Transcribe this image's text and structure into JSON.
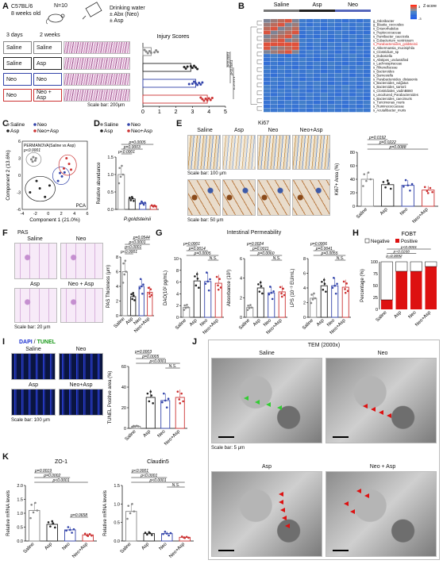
{
  "panel_labels": {
    "a": "A",
    "b": "B",
    "c": "C",
    "d": "D",
    "e": "E",
    "f": "F",
    "g": "G",
    "h": "H",
    "i": "I",
    "j": "J",
    "k": "K"
  },
  "panelA": {
    "strain": "C57BL/6",
    "age": "8 weeks old",
    "n": "N=10",
    "drink1": "Drinking water",
    "drink2": "± Abx (Neo)",
    "drink3": "± Asp",
    "period1": "3 days",
    "period2": "2 weeks",
    "left_groups": [
      "Saline",
      "Saline",
      "Neo",
      "Neo"
    ],
    "right_groups": [
      "Saline",
      "Asp",
      "Neo",
      "Neo + Asp"
    ],
    "group_colors": [
      "#888888",
      "#222222",
      "#3344aa",
      "#cc3333"
    ],
    "scalebar": "Scale bar: 200μm",
    "chart_title": "Injury Scores",
    "pvals": [
      "p<0.0001",
      "p<0.0001",
      "p=0.013"
    ]
  },
  "panelB": {
    "groups": [
      "Saline",
      "Asp",
      "Neo"
    ],
    "legend_title": "Z-score",
    "legend_ticks": [
      "3",
      "2",
      "1",
      "0",
      "-1",
      "-2",
      "-3"
    ],
    "taxa": [
      "g_Odoribacter",
      "g_Blautia_coccoides",
      "s_Enterorhabdus",
      "s_Peptococcaceae",
      "s_Parvibacter_caecicola",
      "s_Eubacterium_ventriosum",
      "s_Parabacteroides_goldsteinii",
      "s_Akkermansia_muciniphila",
      "s_Clostridium_sp",
      "s_Dubosiella",
      "s_Alistipes_unclassified",
      "s_Lachnospiraceae",
      "s_Rikenellaceae",
      "s_Bacteroides",
      "s_Barnesiella",
      "s_Parabacteroides_distasonis",
      "s_Bacteroides_vulgatus",
      "s_Bacteroides_sartorii",
      "s_Clostridiales_vadinBB60",
      "s_uncultured_Parabacteroides",
      "s_Bacteroides_caecimuris",
      "s_Turicimonas_muris",
      "s_Ruminococcaceae",
      "s_Acutalibacter_muris"
    ],
    "highlight_index": 6
  },
  "panelC": {
    "legend": [
      "Saline",
      "Neo",
      "Asp",
      "Neo+Asp"
    ],
    "note1": "PERMANOVA(Saline vs Asp)",
    "note2": "p<0.0001",
    "method": "PCA"
  },
  "panelD": {
    "legend": [
      "Saline",
      "Neo",
      "Asp",
      "Neo+Asp"
    ],
    "pvals": [
      "p<0.0001",
      "p=0.0003",
      "p=0.0005"
    ],
    "xlabel": "P.goldsteinii"
  },
  "panelE": {
    "title": "Ki67",
    "groups": [
      "Saline",
      "Asp",
      "Neo",
      "Neo+Asp"
    ],
    "scalebar1": "Scale bar: 100 μm",
    "scalebar2": "Scale bar: 50 μm",
    "pvals": [
      "p=0.0088",
      "p=0.0222",
      "p=0.0192"
    ]
  },
  "panelF": {
    "title": "PAS",
    "groups": [
      "Saline",
      "Neo",
      "Asp",
      "Neo + Asp"
    ],
    "scalebar": "Scale bar: 20 μm",
    "pvals": [
      "p<0.0001",
      "p<0.0001",
      "p<0.0001",
      "p=0.0544"
    ]
  },
  "panelG": {
    "title": "Intestinal Permeability",
    "pvals_dao": [
      "p=0.0005",
      "p=0.0014",
      "p=0.0001"
    ],
    "pvals_abs": [
      "p=0.0060",
      "p=0.0011",
      "p=0.0024"
    ],
    "pvals_lps": [
      "p=0.0055",
      "p=0.0041",
      "p=0.0006"
    ],
    "ns": "N.S."
  },
  "panelH": {
    "title": "FOBT",
    "legend": [
      "Negative",
      "Positive"
    ],
    "pvals": [
      "p<0.0001",
      "p=0.0268",
      "p=0.0092"
    ]
  },
  "panelI": {
    "title_dapi": "DAPI",
    "title_sep": " / ",
    "title_tunel": "TUNEL",
    "groups": [
      "Saline",
      "Neo",
      "Asp",
      "Neo+Asp"
    ],
    "scalebar": "Scale bar: 100 μm",
    "pvals": [
      "p<0.0001",
      "p=0.0005",
      "p=0.0003"
    ],
    "ns": "N.S."
  },
  "panelJ": {
    "title": "TEM (2000x)",
    "groups": [
      "Saline",
      "Neo",
      "Asp",
      "Neo + Asp"
    ],
    "scalebar": "Scale bar: 5 μm"
  },
  "panelK": {
    "title1": "ZO-1",
    "title2": "Claudin5",
    "pvals1": [
      "p<0.0001",
      "p=0.0002",
      "p=0.0019",
      "p=0.0658"
    ],
    "pvals2": [
      "p<0.0001",
      "p<0.0001",
      "p<0.0001"
    ],
    "ns": "N.S."
  },
  "chart_data": [
    {
      "type": "bar",
      "id": "A",
      "title": "Injury Scores",
      "orientation": "horizontal",
      "categories": [
        "Saline",
        "Asp",
        "Neo",
        "Neo + Asp"
      ],
      "values": [
        0.5,
        2.9,
        3.2,
        3.9
      ],
      "xlim": [
        0,
        5
      ],
      "xticks": [
        "0",
        "1",
        "2",
        "3",
        "4",
        "5"
      ]
    },
    {
      "type": "scatter",
      "id": "C",
      "xlabel": "Component 1 (21.0%)",
      "ylabel": "Component 2 (13.6%)",
      "xlim": [
        -4,
        6
      ],
      "ylim": [
        -6,
        6
      ],
      "xticks": [
        "-4",
        "-2",
        "0",
        "2",
        "4",
        "6"
      ],
      "yticks": [
        "-6",
        "-3",
        "0",
        "3",
        "6"
      ],
      "series": [
        {
          "name": "Saline",
          "values": [
            [
              -2.6,
              2.8
            ],
            [
              -2.3,
              3.2
            ],
            [
              -2.0,
              2.6
            ],
            [
              -2.4,
              2.4
            ],
            [
              -1.9,
              3.0
            ]
          ]
        },
        {
          "name": "Asp",
          "values": [
            [
              -2.8,
              -3.0
            ],
            [
              -1.3,
              -2.3
            ],
            [
              -0.5,
              -3.8
            ],
            [
              0.2,
              -1.8
            ],
            [
              -1.8,
              -1.0
            ]
          ]
        },
        {
          "name": "Neo",
          "values": [
            [
              1.5,
              -1.0
            ],
            [
              2.1,
              -0.2
            ],
            [
              2.5,
              0.5
            ],
            [
              1.8,
              0.4
            ]
          ]
        },
        {
          "name": "Neo+Asp",
          "values": [
            [
              2.4,
              1.2
            ],
            [
              3.2,
              2.0
            ],
            [
              3.5,
              1.0
            ],
            [
              2.8,
              3.0
            ]
          ]
        }
      ]
    },
    {
      "type": "bar",
      "id": "D",
      "ylabel": "Relative abundance",
      "categories": [
        "Saline",
        "Asp",
        "Neo",
        "Neo+Asp"
      ],
      "values": [
        1.0,
        0.3,
        0.18,
        0.1
      ],
      "ylim": [
        0,
        1.5
      ],
      "yticks": [
        "0.0",
        "0.5",
        "1.0",
        "1.5"
      ]
    },
    {
      "type": "bar",
      "id": "E",
      "ylabel": "Ki67+ Area (%)",
      "categories": [
        "Saline",
        "Asp",
        "Neo",
        "Neo+Asp"
      ],
      "values": [
        40,
        32,
        31,
        24
      ],
      "ylim": [
        0,
        80
      ],
      "yticks": [
        "0",
        "20",
        "40",
        "60",
        "80"
      ]
    },
    {
      "type": "bar",
      "id": "F",
      "ylabel": "PAS Thickness (μm)",
      "categories": [
        "Saline",
        "Asp",
        "Neo",
        "Neo+Asp"
      ],
      "values": [
        6.0,
        2.6,
        4.0,
        3.2
      ],
      "ylim": [
        0,
        8
      ],
      "yticks": [
        "0",
        "2",
        "4",
        "6",
        "8"
      ]
    },
    {
      "type": "bar",
      "id": "G1",
      "ylabel": "DAO(10² pg/mL)",
      "categories": [
        "Saline",
        "Asp",
        "Neo",
        "Neo+Asp"
      ],
      "values": [
        1.7,
        6.2,
        6.1,
        5.8
      ],
      "ylim": [
        0,
        10
      ],
      "yticks": [
        "0",
        "2",
        "4",
        "6",
        "8",
        "10"
      ]
    },
    {
      "type": "bar",
      "id": "G2",
      "ylabel": "Absorbance (10²)",
      "categories": [
        "Saline",
        "Asp",
        "Neo",
        "Neo+Asp"
      ],
      "values": [
        1.0,
        3.0,
        2.5,
        2.6
      ],
      "ylim": [
        0,
        6
      ],
      "yticks": [
        "0",
        "2",
        "4",
        "6"
      ]
    },
    {
      "type": "bar",
      "id": "G3",
      "ylabel": "LPS (10⁻³ EU/mL)",
      "categories": [
        "Saline",
        "Asp",
        "Neo",
        "Neo+Asp"
      ],
      "values": [
        2.6,
        4.3,
        4.3,
        4.1
      ],
      "ylim": [
        0,
        8
      ],
      "yticks": [
        "0",
        "2",
        "4",
        "6",
        "8"
      ]
    },
    {
      "type": "bar",
      "id": "H",
      "ylabel": "Percentage (%)",
      "stacked": true,
      "categories": [
        "Saline",
        "Asp",
        "Neo",
        "Neo+Asp"
      ],
      "series": [
        {
          "name": "Negative",
          "values": [
            80,
            20,
            20,
            10
          ]
        },
        {
          "name": "Positive",
          "values": [
            20,
            80,
            80,
            90
          ]
        }
      ],
      "ylim": [
        0,
        100
      ],
      "yticks": [
        "0",
        "25",
        "50",
        "75",
        "100"
      ]
    },
    {
      "type": "bar",
      "id": "I",
      "ylabel": "TUNEL Positive area (%)",
      "categories": [
        "Saline",
        "Asp",
        "Neo",
        "Neo+Asp"
      ],
      "values": [
        2,
        30,
        27,
        30
      ],
      "ylim": [
        0,
        60
      ],
      "yticks": [
        "0",
        "20",
        "40",
        "60"
      ]
    },
    {
      "type": "bar",
      "id": "K1",
      "title": "ZO-1",
      "ylabel": "Relative mRNA levels",
      "categories": [
        "Saline",
        "Asp",
        "Neo",
        "Neo+Asp"
      ],
      "values": [
        1.1,
        0.6,
        0.4,
        0.22
      ],
      "ylim": [
        0,
        2.0
      ],
      "yticks": [
        "0.0",
        "0.5",
        "1.0",
        "1.5",
        "2.0"
      ]
    },
    {
      "type": "bar",
      "id": "K2",
      "title": "Claudin5",
      "ylabel": "Relative mRNA levels",
      "categories": [
        "Saline",
        "Asp",
        "Neo",
        "Neo+Asp"
      ],
      "values": [
        0.8,
        0.2,
        0.2,
        0.1
      ],
      "ylim": [
        0,
        1.5
      ],
      "yticks": [
        "0.0",
        "0.5",
        "1.0",
        "1.5"
      ]
    }
  ]
}
